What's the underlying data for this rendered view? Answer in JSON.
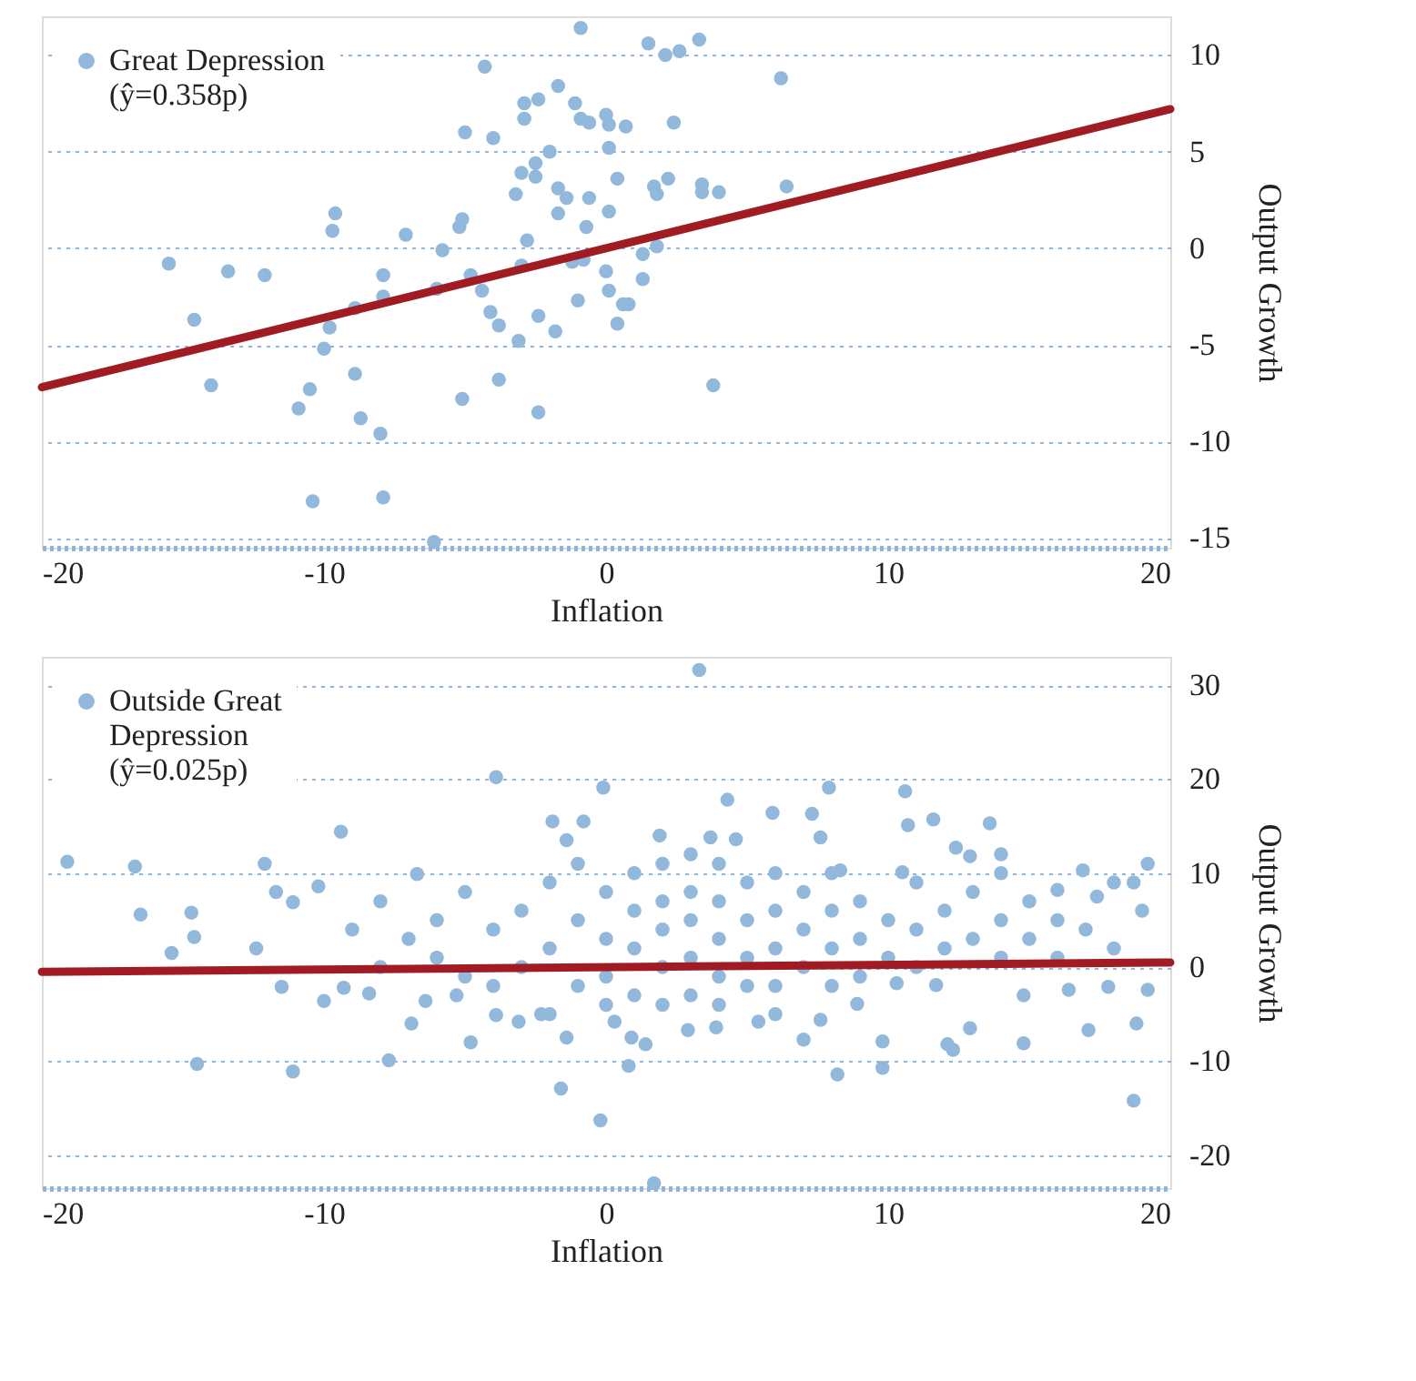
{
  "chart_data": [
    {
      "type": "scatter",
      "xlabel": "Inflation",
      "ylabel": "Output Growth",
      "xlim": [
        -20,
        20
      ],
      "ylim": [
        -15.5,
        12
      ],
      "xticks": [
        -20,
        -10,
        0,
        10,
        20
      ],
      "yticks": [
        -15,
        -10,
        -5,
        0,
        5,
        10
      ],
      "grid": "y",
      "legend": "top left",
      "series": [
        {
          "name": "Great Depression (ŷ=0.358p)",
          "color": "#92b8dc",
          "marker": "circle",
          "x": [
            -0.9,
            1.5,
            2.1,
            2.6,
            3.3,
            6.2,
            -4.3,
            -1.7,
            -2.4,
            -2.9,
            -1.1,
            0,
            -2.9,
            -0.9,
            -0.6,
            0.1,
            0.7,
            2.4,
            -5,
            -4,
            0.1,
            -2,
            -2.5,
            -3,
            -2.5,
            0.4,
            2.2,
            -1.7,
            -3.2,
            -1.4,
            -0.6,
            1.7,
            1.8,
            3.4,
            3.4,
            4,
            6.4,
            -1.7,
            0.1,
            -0.7,
            -9.6,
            -9.7,
            -5.2,
            -5.1,
            -7.1,
            -5.8,
            -2.8,
            1.8,
            1.3,
            -3,
            -1.2,
            -0.8,
            -15.5,
            -13.4,
            -12.1,
            -7.9,
            -4.8,
            0,
            1.3,
            -4.4,
            0.1,
            -7.9,
            -6,
            -1,
            0.6,
            0.8,
            -8.9,
            -14.6,
            -4.1,
            -3.8,
            -2.4,
            0.4,
            -1.8,
            -3.1,
            -9.8,
            -10,
            -14,
            -10.5,
            -10.9,
            -8.9,
            -5.1,
            -3.8,
            -2.4,
            3.8,
            -8.7,
            -8,
            -10.4,
            -7.9,
            -6.1
          ],
          "values": [
            11.4,
            10.6,
            10,
            10.2,
            10.8,
            8.8,
            9.4,
            8.4,
            7.7,
            7.5,
            7.5,
            6.9,
            6.7,
            6.7,
            6.5,
            6.4,
            6.3,
            6.5,
            6,
            5.7,
            5.2,
            5,
            4.4,
            3.9,
            3.7,
            3.6,
            3.6,
            3.1,
            2.8,
            2.6,
            2.6,
            3.2,
            2.8,
            3.3,
            2.9,
            2.9,
            3.2,
            1.8,
            1.9,
            1.1,
            1.8,
            0.9,
            1.1,
            1.5,
            0.7,
            -0.1,
            0.4,
            0.1,
            -0.3,
            -0.9,
            -0.7,
            -0.6,
            -0.8,
            -1.2,
            -1.4,
            -1.4,
            -1.4,
            -1.2,
            -1.6,
            -2.2,
            -2.2,
            -2.5,
            -2.1,
            -2.7,
            -2.9,
            -2.9,
            -3.1,
            -3.7,
            -3.3,
            -4,
            -3.5,
            -3.9,
            -4.3,
            -4.8,
            -4.1,
            -5.2,
            -7.1,
            -7.3,
            -8.3,
            -6.5,
            -7.8,
            -6.8,
            -8.5,
            -7.1,
            -8.8,
            -9.6,
            -13.1,
            -12.9,
            -15.2
          ]
        },
        {
          "type": "line",
          "color": "#a01c22",
          "line_style": "solid",
          "x": [
            -20,
            20
          ],
          "values": [
            -7.2,
            7.2
          ]
        }
      ]
    },
    {
      "type": "scatter",
      "xlabel": "Inflation",
      "ylabel": "Output Growth",
      "xlim": [
        -20,
        20
      ],
      "ylim": [
        -23.5,
        33
      ],
      "xticks": [
        -20,
        -10,
        0,
        10,
        20
      ],
      "yticks": [
        -20,
        -10,
        0,
        10,
        20,
        30
      ],
      "grid": "y",
      "legend": "top left",
      "series": [
        {
          "name": "Outside Great Depression (ŷ=0.025p)",
          "color": "#92b8dc",
          "marker": "circle",
          "x": [
            3.3,
            -3.9,
            -0.1,
            7.9,
            10.6,
            4.3,
            5.9,
            7.3,
            11.6,
            10.7,
            13.6,
            -1.9,
            -0.8,
            -9.4,
            3.7,
            4.6,
            7.6,
            1.9,
            -1.4,
            12.4,
            14,
            12.9,
            -19.1,
            -16.7,
            -12.1,
            19.2,
            16.9,
            10.5,
            8.3,
            -6.7,
            -10.2,
            -11.7,
            -11.1,
            -16.5,
            -14.7,
            -14.6,
            -15.4,
            -12.4,
            18.7,
            16,
            17.4,
            -14.5,
            -11.1,
            -7.7,
            -1.6,
            -0.2,
            1.7,
            0.8,
            8.2,
            9.8,
            9.8,
            12.1,
            12.3,
            12.9,
            14.8,
            17.1,
            18.8,
            18.7,
            19.2,
            -4.8,
            -6.9,
            -3.1,
            -3.9,
            -1.4,
            2.9,
            3.9,
            5.4,
            7,
            7.6,
            8.9,
            10.3,
            11.7,
            14.8,
            16.4,
            17.8,
            -11.5,
            -10,
            -9.3,
            -8.4,
            -6.4,
            -5.3,
            -2.3,
            0.3,
            0.9,
            1.4,
            -2,
            -1,
            -1,
            0,
            0,
            0,
            0,
            1,
            1,
            1,
            1,
            2,
            2,
            2,
            2,
            2,
            3,
            3,
            3,
            3,
            3,
            4,
            4,
            4,
            4,
            4,
            5,
            5,
            5,
            5,
            6,
            6,
            6,
            6,
            7,
            7,
            7,
            -1,
            -2,
            -3,
            -3,
            -4,
            -5,
            -5,
            -6,
            -6,
            -7,
            -8,
            -8,
            -9,
            8,
            8,
            8,
            9,
            9,
            9,
            10,
            10,
            11,
            11,
            11,
            12,
            12,
            13,
            13,
            14,
            14,
            14,
            15,
            15,
            16,
            16,
            17,
            18,
            18,
            19,
            -4,
            -2,
            8,
            6
          ],
          "values": [
            31.6,
            20.2,
            19.1,
            19.1,
            18.7,
            17.8,
            16.4,
            16.3,
            15.7,
            15.1,
            15.3,
            15.5,
            15.5,
            14.4,
            13.8,
            13.6,
            13.8,
            14,
            13.5,
            12.7,
            12,
            11.8,
            11.2,
            10.7,
            11,
            11,
            10.3,
            10.1,
            10.3,
            9.9,
            8.6,
            8,
            6.9,
            5.6,
            5.8,
            3.2,
            1.5,
            2,
            9,
            8.2,
            7.5,
            -10.3,
            -11.1,
            -9.9,
            -12.9,
            -16.3,
            -23,
            -10.5,
            -11.4,
            -10.7,
            -7.9,
            -8.2,
            -8.8,
            -6.5,
            -8.1,
            -6.7,
            -6,
            -14.2,
            -2.4,
            -8,
            -6,
            -5.8,
            -5.1,
            -7.5,
            -6.7,
            -6.4,
            -5.8,
            -7.7,
            -5.6,
            -3.9,
            -1.7,
            -1.9,
            -3,
            -2.4,
            -2.1,
            -2.1,
            -3.6,
            -2.2,
            -2.8,
            -3.6,
            -3,
            -5,
            -5.8,
            -7.5,
            -8.2,
            2,
            5,
            -2,
            8,
            3,
            -1,
            -4,
            10,
            6,
            2,
            -3,
            11,
            7,
            4,
            0,
            -4,
            12,
            8,
            5,
            1,
            -3,
            11,
            7,
            3,
            -1,
            -4,
            9,
            5,
            1,
            -2,
            10,
            6,
            2,
            -2,
            8,
            4,
            0,
            11,
            9,
            6,
            0,
            4,
            8,
            -1,
            5,
            1,
            3,
            7,
            0,
            4,
            10,
            6,
            2,
            7,
            3,
            -1,
            5,
            1,
            9,
            4,
            0,
            6,
            2,
            8,
            3,
            10,
            5,
            1,
            7,
            3,
            5,
            1,
            4,
            2,
            9,
            6,
            -2,
            -5,
            -2,
            -5
          ]
        },
        {
          "type": "line",
          "color": "#a01c22",
          "line_style": "solid",
          "x": [
            -20,
            20
          ],
          "values": [
            -0.5,
            0.5
          ]
        }
      ]
    }
  ]
}
